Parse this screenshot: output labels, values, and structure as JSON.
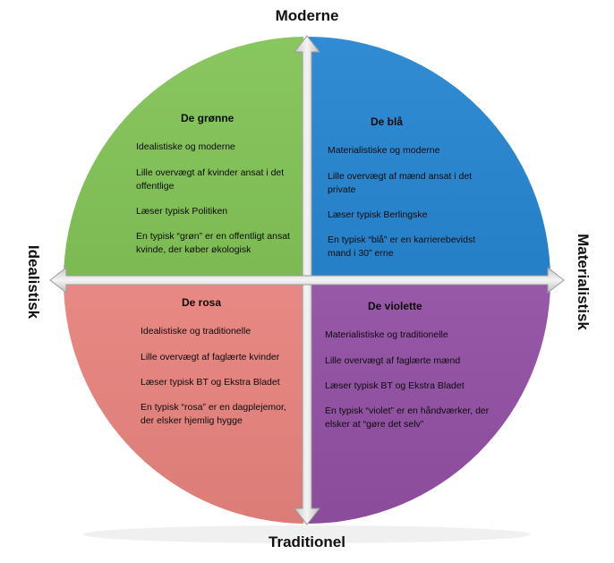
{
  "axes": {
    "top": "Moderne",
    "bottom": "Traditionel",
    "left": "Idealistisk",
    "right": "Materialistisk"
  },
  "quadrants": {
    "top_left": {
      "title": "De grønne",
      "color": "#7cc04e",
      "items": [
        "Idealistiske og moderne",
        "Lille overvægt af kvinder ansat i det offentlige",
        "Læser typisk Politiken",
        "En typisk “grøn” er en offentligt ansat kvinde, der køber økologisk"
      ]
    },
    "top_right": {
      "title": "De blå",
      "color": "#1a7fcf",
      "items": [
        "Materialistiske og moderne",
        "Lille overvægt af mænd ansat i det private",
        "Læser typisk Berlingske",
        "En typisk “blå” er en karrierebevidst mand i 30” erne"
      ]
    },
    "bottom_left": {
      "title": "De rosa",
      "color": "#f48a85",
      "items": [
        "Idealistiske og traditionelle",
        "Lille overvægt af faglærte kvinder",
        "Læser typisk BT og Ekstra Bladet",
        "En typisk “rosa” er en dagplejemor, der elsker hjemlig hygge"
      ]
    },
    "bottom_right": {
      "title": "De violette",
      "color": "#9b54ad",
      "items": [
        "Materialistiske og traditionelle",
        "Lille overvægt af faglærte mænd",
        "Læser typisk BT og Ekstra Bladet",
        "En typisk “violet” er en håndværker, der elsker at “gøre det selv”"
      ]
    }
  },
  "colors": {
    "arrow_fill": "#e8e8e8",
    "arrow_stroke": "#9a9a9a"
  }
}
